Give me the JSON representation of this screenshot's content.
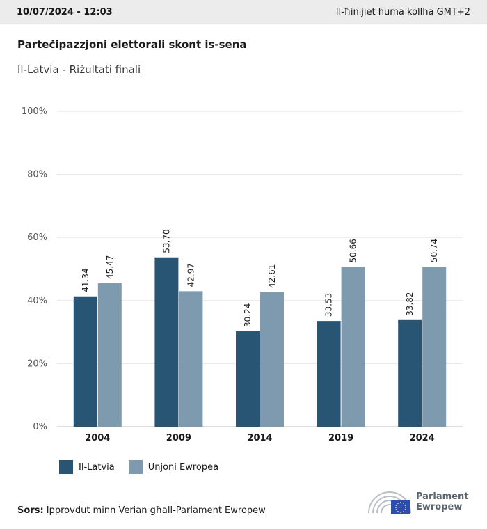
{
  "header": {
    "timestamp": "10/07/2024 - 12:03",
    "note": "Il-ħinijiet huma kollha GMT+2"
  },
  "chart_data": {
    "type": "bar",
    "title": "Parteċipazzjoni elettorali skont is-sena",
    "subtitle": "Il-Latvia - Riżultati finali",
    "categories": [
      "2004",
      "2009",
      "2014",
      "2019",
      "2024"
    ],
    "series": [
      {
        "name": "Il-Latvia",
        "values": [
          41.34,
          53.7,
          30.24,
          33.53,
          33.82
        ],
        "color": "#285574"
      },
      {
        "name": "Unjoni Ewropea",
        "values": [
          45.47,
          42.97,
          42.61,
          50.66,
          50.74
        ],
        "color": "#7d9aae"
      }
    ],
    "ylim": [
      0,
      100
    ],
    "yticks": [
      "0%",
      "20%",
      "40%",
      "60%",
      "80%",
      "100%"
    ],
    "value_format": "2 decimals",
    "grid": true,
    "legend": "bottom-left"
  },
  "footer": {
    "source_label": "Sors:",
    "source_text": " Ipprovdut minn Verian għall-Parlament Ewropew"
  },
  "logo": {
    "line1": "Parlament",
    "line2": "Ewropew"
  }
}
